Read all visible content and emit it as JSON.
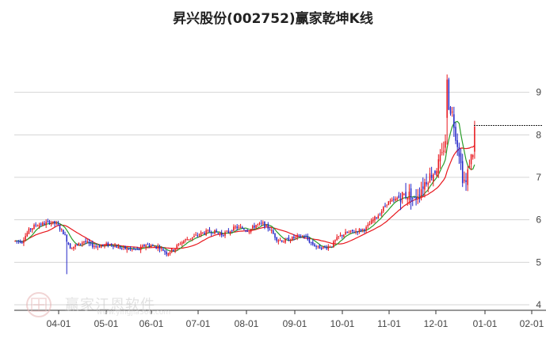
{
  "title": "昇兴股份(002752)赢家乾坤K线",
  "watermark": {
    "text": "赢家江恩软件",
    "url": "www.yingjia360.com"
  },
  "colors": {
    "up": "#e8161c",
    "down": "#2326c8",
    "ma_short": "#2a9d2a",
    "ma_long": "#e8161c",
    "grid": "#d4d4d4",
    "axis": "#333333"
  },
  "chart_data": {
    "type": "candlestick",
    "title": "昇兴股份(002752)赢家乾坤K线",
    "ylim": [
      4,
      10
    ],
    "y_ticks": [
      4,
      5,
      6,
      7,
      8,
      9
    ],
    "x_ticks": [
      "04-01",
      "05-01",
      "06-01",
      "07-01",
      "08-01",
      "09-01",
      "10-01",
      "11-01",
      "12-01",
      "01-01",
      "02-01"
    ],
    "last_close_line": 8.22,
    "grid": true,
    "trend_points": [
      [
        0,
        5.5
      ],
      [
        4,
        5.5
      ],
      [
        8,
        5.75
      ],
      [
        12,
        5.88
      ],
      [
        16,
        5.9
      ],
      [
        20,
        5.95
      ],
      [
        24,
        5.9
      ],
      [
        28,
        5.7
      ],
      [
        32,
        5.35
      ],
      [
        36,
        5.4
      ],
      [
        40,
        5.5
      ],
      [
        44,
        5.4
      ],
      [
        48,
        5.38
      ],
      [
        52,
        5.4
      ],
      [
        56,
        5.42
      ],
      [
        60,
        5.35
      ],
      [
        64,
        5.32
      ],
      [
        68,
        5.3
      ],
      [
        72,
        5.3
      ],
      [
        76,
        5.42
      ],
      [
        80,
        5.38
      ],
      [
        84,
        5.35
      ],
      [
        88,
        5.22
      ],
      [
        92,
        5.3
      ],
      [
        96,
        5.45
      ],
      [
        100,
        5.55
      ],
      [
        104,
        5.6
      ],
      [
        108,
        5.68
      ],
      [
        112,
        5.72
      ],
      [
        116,
        5.72
      ],
      [
        120,
        5.65
      ],
      [
        124,
        5.72
      ],
      [
        128,
        5.82
      ],
      [
        132,
        5.8
      ],
      [
        136,
        5.75
      ],
      [
        140,
        5.88
      ],
      [
        144,
        5.9
      ],
      [
        148,
        5.78
      ],
      [
        152,
        5.55
      ],
      [
        156,
        5.5
      ],
      [
        160,
        5.55
      ],
      [
        164,
        5.6
      ],
      [
        168,
        5.62
      ],
      [
        172,
        5.45
      ],
      [
        176,
        5.35
      ],
      [
        180,
        5.35
      ],
      [
        184,
        5.4
      ],
      [
        188,
        5.6
      ],
      [
        192,
        5.68
      ],
      [
        196,
        5.72
      ],
      [
        200,
        5.75
      ],
      [
        204,
        5.8
      ],
      [
        208,
        6.0
      ],
      [
        212,
        6.15
      ],
      [
        216,
        6.4
      ],
      [
        220,
        6.45
      ],
      [
        224,
        6.55
      ],
      [
        228,
        6.6
      ],
      [
        232,
        6.5
      ],
      [
        236,
        6.75
      ],
      [
        240,
        7.0
      ],
      [
        244,
        7.15
      ],
      [
        248,
        7.5
      ],
      [
        250,
        7.9
      ],
      [
        251,
        9.3
      ],
      [
        252,
        8.7
      ],
      [
        254,
        8.5
      ],
      [
        256,
        8.0
      ],
      [
        258,
        7.6
      ],
      [
        260,
        7.0
      ],
      [
        262,
        6.85
      ],
      [
        264,
        7.35
      ],
      [
        266,
        7.6
      ],
      [
        267,
        8.15
      ]
    ]
  }
}
